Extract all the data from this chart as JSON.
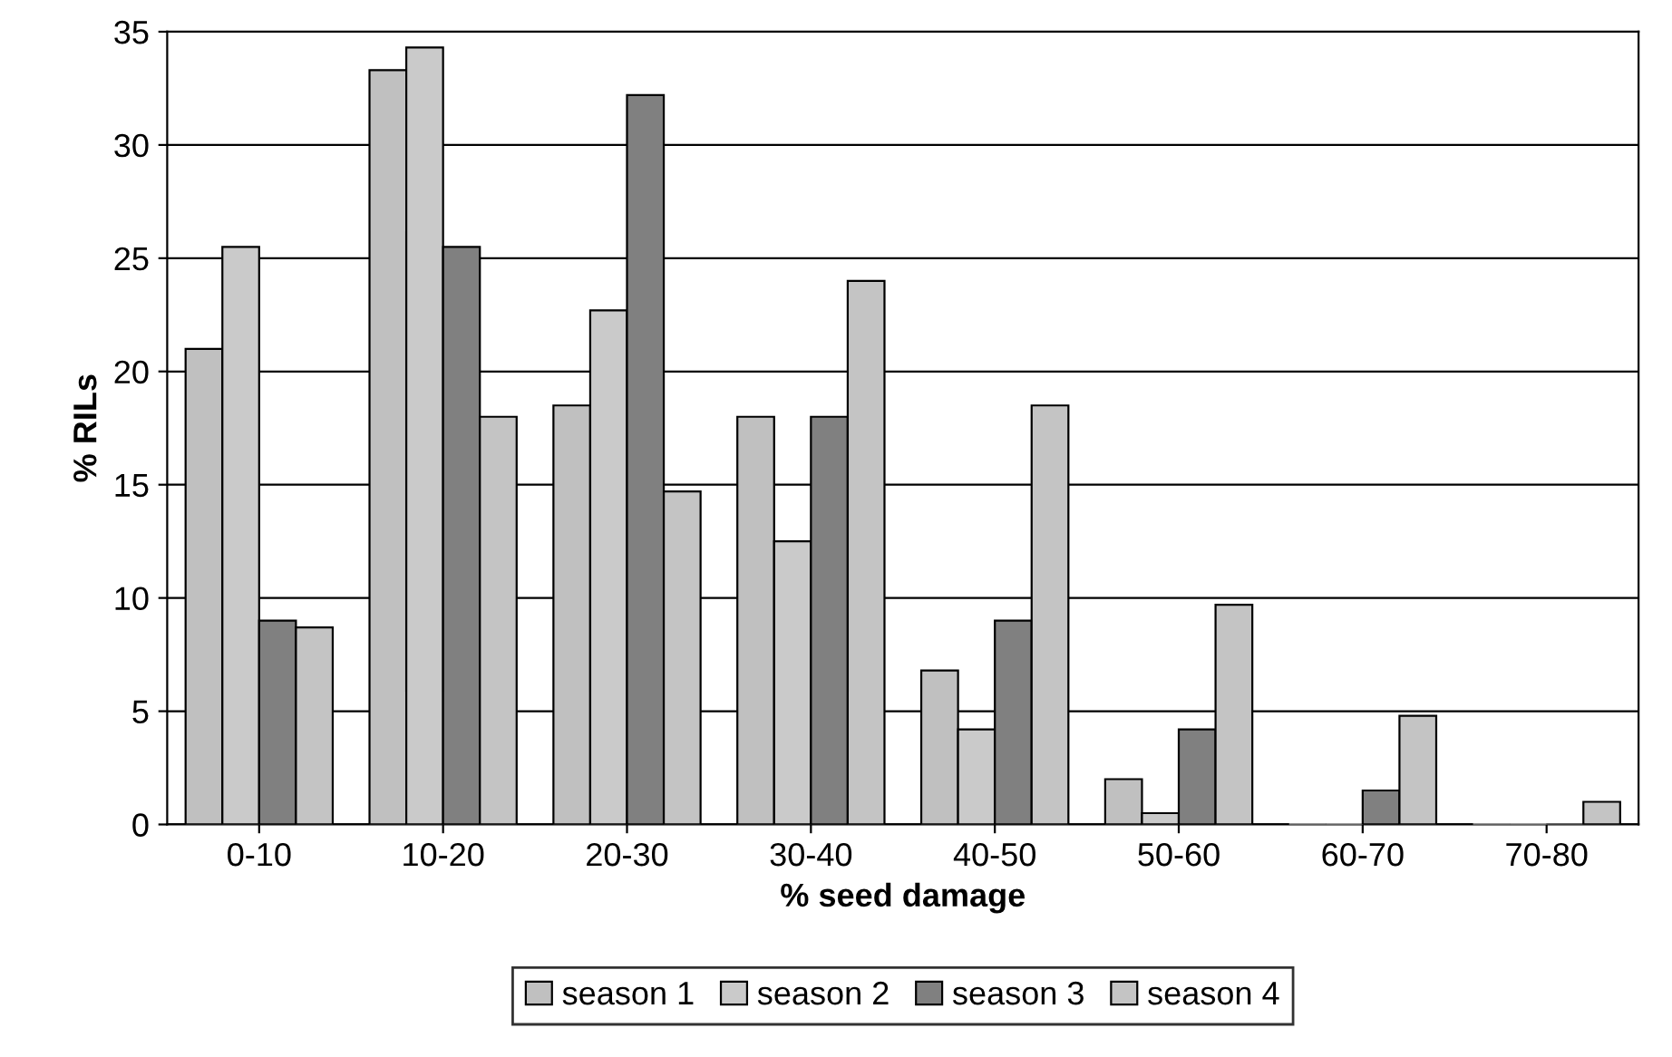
{
  "chart_data": {
    "type": "bar",
    "xlabel": "% seed damage",
    "ylabel": "% RILs",
    "categories": [
      "0-10",
      "10-20",
      "20-30",
      "30-40",
      "40-50",
      "50-60",
      "60-70",
      "70-80"
    ],
    "series": [
      {
        "name": "season 1",
        "color": "#c0c0c0",
        "values": [
          21,
          33.3,
          18.5,
          18,
          6.8,
          2,
          0,
          0
        ]
      },
      {
        "name": "season 2",
        "color": "#cacaca",
        "values": [
          25.5,
          34.3,
          22.7,
          12.5,
          4.2,
          0.5,
          0,
          0
        ]
      },
      {
        "name": "season 3",
        "color": "#808080",
        "values": [
          9,
          25.5,
          32.2,
          18,
          9,
          4.2,
          1.5,
          0
        ]
      },
      {
        "name": "season 4",
        "color": "#c4c4c4",
        "values": [
          8.7,
          18,
          14.7,
          24,
          18.5,
          9.7,
          4.8,
          1
        ]
      }
    ],
    "ylim": [
      0,
      35
    ],
    "yticks": [
      0,
      5,
      10,
      15,
      20,
      25,
      30,
      35
    ],
    "grid": "y",
    "legend": "bottom"
  }
}
